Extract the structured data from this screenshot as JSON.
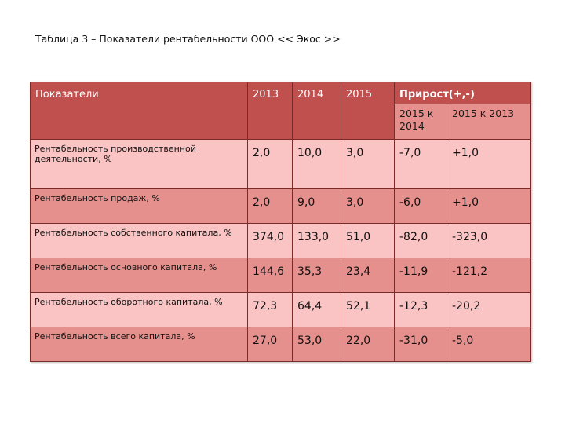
{
  "caption": "Таблица 3 – Показатели рентабельности ООО << Экос >>",
  "table": {
    "headers": {
      "indicator": "Показатели",
      "y2013": "2013",
      "y2014": "2014",
      "y2015": "2015",
      "growth": "Прирост(+,-)",
      "growth_sub1": "2015 к 2014",
      "growth_sub2": "2015 к 2013"
    },
    "rows": [
      {
        "label": "Рентабельность производственной деятельности, %",
        "v2013": "2,0",
        "v2014": "10,0",
        "v2015": "3,0",
        "g1": "-7,0",
        "g2": "+1,0"
      },
      {
        "label": "Рентабельность  продаж, %",
        "v2013": "2,0",
        "v2014": "9,0",
        "v2015": "3,0",
        "g1": "-6,0",
        "g2": "+1,0"
      },
      {
        "label": "Рентабельность собственного капитала, %",
        "v2013": "374,0",
        "v2014": "133,0",
        "v2015": "51,0",
        "g1": "-82,0",
        "g2": "-323,0"
      },
      {
        "label": "Рентабельность основного капитала, %",
        "v2013": "144,6",
        "v2014": "35,3",
        "v2015": "23,4",
        "g1": "-11,9",
        "g2": "-121,2"
      },
      {
        "label": "Рентабельность оборотного капитала, %",
        "v2013": "72,3",
        "v2014": "64,4",
        "v2015": "52,1",
        "g1": "-12,3",
        "g2": "-20,2"
      },
      {
        "label": "Рентабельность всего  капитала, %",
        "v2013": "27,0",
        "v2014": "53,0",
        "v2015": "22,0",
        "g1": "-31,0",
        "g2": "-5,0"
      }
    ]
  },
  "colors": {
    "header": "#c0504d",
    "row_light": "#f9c4c3",
    "row_dark": "#e6908e",
    "border": "#7a2a28"
  }
}
